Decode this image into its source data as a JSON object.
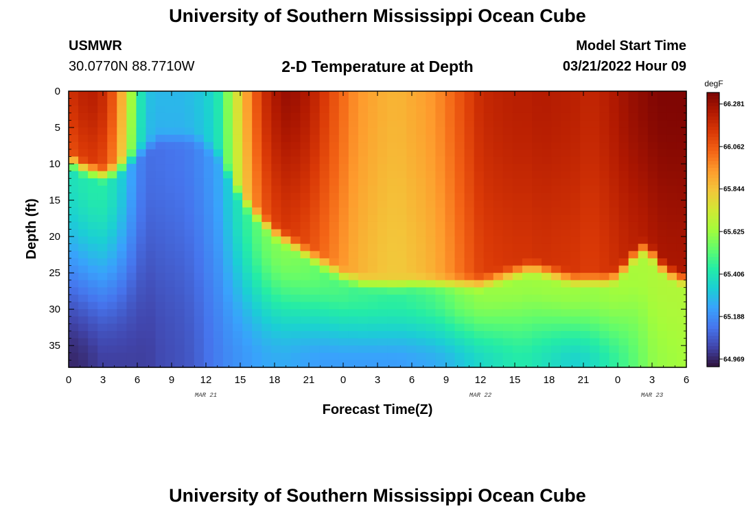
{
  "header": {
    "title": "University of Southern Mississippi Ocean Cube",
    "station": "USMWR",
    "coords": "30.0770N  88.7710W",
    "plot_title": "2-D Temperature at Depth",
    "model_label": "Model Start Time",
    "model_time": "03/21/2022 Hour 09"
  },
  "footer": {
    "title": "University of Southern Mississippi Ocean Cube"
  },
  "colors": {
    "colormap": [
      "#30123b",
      "#4145ab",
      "#4675ed",
      "#39a2fc",
      "#1bcfd4",
      "#24eca6",
      "#61fc6c",
      "#a4fc3b",
      "#d1e834",
      "#f3c63a",
      "#fe9b2d",
      "#f36315",
      "#d93806",
      "#b11901",
      "#7a0403"
    ]
  },
  "chart_data": {
    "type": "heatmap",
    "title": "2-D Temperature at Depth",
    "xlabel": "Forecast Time(Z)",
    "ylabel": "Depth (ft)",
    "x_range_hours": [
      0,
      54
    ],
    "y_range_ft": [
      0,
      38
    ],
    "x_tick_labels": [
      "0",
      "3",
      "6",
      "9",
      "12",
      "15",
      "18",
      "21",
      "0",
      "3",
      "6",
      "9",
      "12",
      "15",
      "18",
      "21",
      "0",
      "3",
      "6"
    ],
    "y_ticks": [
      0,
      5,
      10,
      15,
      20,
      25,
      30,
      35
    ],
    "y_tick_labels": [
      "0",
      "5",
      "10",
      "15",
      "20",
      "25",
      "30",
      "35"
    ],
    "date_labels": [
      {
        "label": "MAR 21",
        "hour": 12
      },
      {
        "label": "MAR 22",
        "hour": 36
      },
      {
        "label": "MAR 23",
        "hour": 51
      }
    ],
    "colorbar": {
      "unit": "degF",
      "min": 64.93,
      "max": 66.34,
      "ticks": [
        66.281,
        66.062,
        65.844,
        65.625,
        65.406,
        65.188,
        64.969
      ],
      "tick_labels": [
        "66.281",
        "66.062",
        "65.844",
        "65.625",
        "65.406",
        "65.188",
        "64.969"
      ]
    },
    "grid": {
      "ncols": 64,
      "nrows": 38,
      "x_hours": [
        0,
        1,
        2,
        3,
        4,
        5,
        6,
        7,
        8,
        9,
        10,
        11,
        12,
        13,
        14,
        15,
        16,
        17,
        18,
        19,
        20,
        21,
        22,
        23,
        24,
        25,
        26,
        27,
        28,
        29,
        30,
        31,
        32,
        33,
        34,
        35,
        36,
        37,
        38,
        39,
        40,
        41,
        42,
        43,
        44,
        45,
        46,
        47,
        48,
        49,
        50,
        51,
        52,
        53,
        54
      ],
      "upper_layer_temp_degF": [
        66.15,
        66.2,
        66.22,
        66.18,
        66.05,
        65.8,
        65.45,
        65.3,
        65.28,
        65.28,
        65.28,
        65.3,
        65.33,
        65.4,
        65.6,
        65.8,
        65.98,
        66.12,
        66.18,
        66.2,
        66.18,
        66.15,
        66.1,
        66.05,
        66.0,
        65.95,
        65.92,
        65.9,
        65.88,
        65.88,
        65.9,
        65.92,
        65.95,
        66.0,
        66.06,
        66.12,
        66.18,
        66.2,
        66.21,
        66.22,
        66.22,
        66.23,
        66.23,
        66.22,
        66.22,
        66.2,
        66.2,
        66.22,
        66.25,
        66.28,
        66.3,
        66.32,
        66.33,
        66.33,
        66.33
      ],
      "surface_layer_bottom_ft": [
        11,
        12,
        12.5,
        13,
        12.5,
        11.5,
        10,
        9,
        8,
        8,
        8,
        8,
        9,
        10,
        13,
        16,
        18,
        19.5,
        21,
        22,
        23,
        24,
        25,
        26,
        27,
        27.5,
        28,
        28,
        28.2,
        28.2,
        28,
        28,
        28,
        28,
        28,
        28,
        28,
        27.5,
        27,
        26.5,
        26,
        26,
        26.5,
        27,
        27.5,
        27.5,
        27.5,
        27.5,
        27,
        25,
        23,
        24,
        26,
        27,
        27.5
      ],
      "bottom_temp_degF": [
        64.97,
        64.98,
        65.0,
        65.02,
        65.02,
        65.02,
        65.02,
        65.02,
        65.04,
        65.05,
        65.06,
        65.08,
        65.12,
        65.15,
        65.18,
        65.2,
        65.22,
        65.24,
        65.25,
        65.25,
        65.24,
        65.23,
        65.22,
        65.22,
        65.22,
        65.22,
        65.22,
        65.22,
        65.22,
        65.22,
        65.23,
        65.24,
        65.25,
        65.27,
        65.3,
        65.33,
        65.36,
        65.38,
        65.4,
        65.42,
        65.42,
        65.4,
        65.38,
        65.36,
        65.34,
        65.35,
        65.38,
        65.42,
        65.46,
        65.5,
        65.55,
        65.6,
        65.62,
        65.63,
        65.64
      ]
    }
  }
}
